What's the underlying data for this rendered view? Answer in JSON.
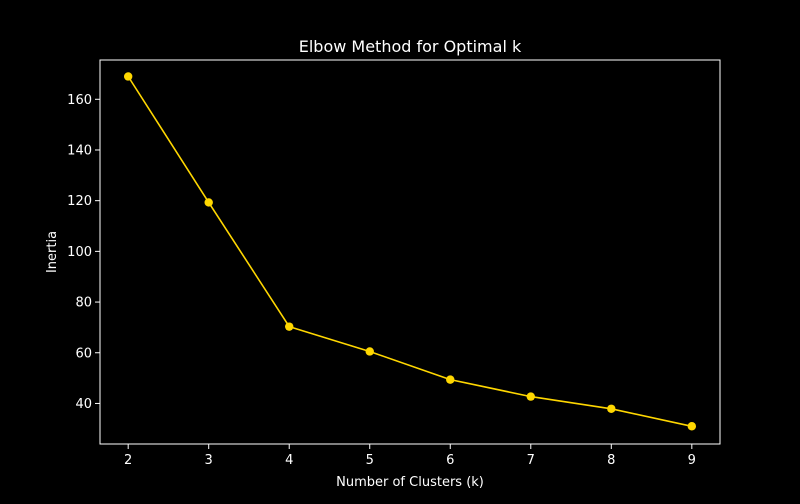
{
  "chart_data": {
    "type": "line",
    "title": "Elbow Method for Optimal k",
    "xlabel": "Number of Clusters (k)",
    "ylabel": "Inertia",
    "x": [
      2,
      3,
      4,
      5,
      6,
      7,
      8,
      9
    ],
    "series": [
      {
        "values": [
          169.0,
          119.3,
          70.3,
          60.5,
          49.4,
          42.7,
          37.9,
          31.0
        ]
      }
    ],
    "xlim": [
      1.65,
      9.35
    ],
    "ylim": [
      24.0,
      175.5
    ],
    "xticks": [
      2,
      3,
      4,
      5,
      6,
      7,
      8,
      9
    ],
    "yticks": [
      40,
      60,
      80,
      100,
      120,
      140,
      160
    ],
    "grid": false,
    "marker": "circle",
    "colors": {
      "background": "#000000",
      "axes": "#ffffff",
      "text": "#ffffff",
      "line": "#ffd700"
    }
  }
}
